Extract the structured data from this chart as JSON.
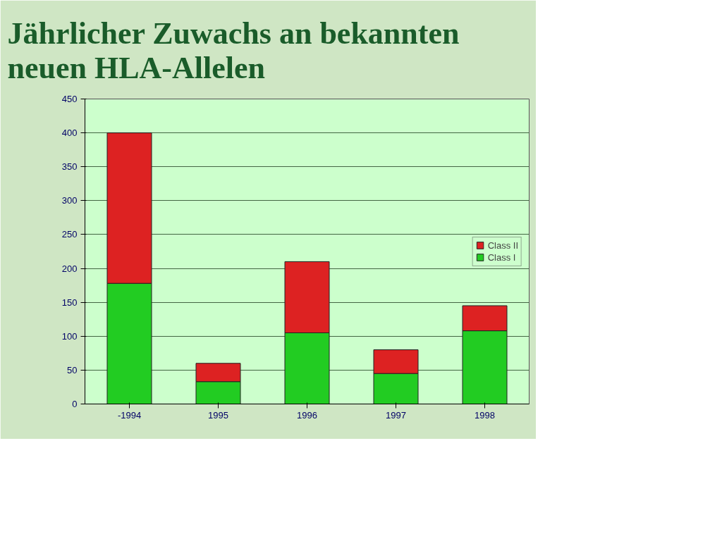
{
  "chart_data": {
    "type": "bar",
    "title": "Jährlicher Zuwachs an bekannten\nneuen HLA-Allelen",
    "stacked": true,
    "categories": [
      "-1994",
      "1995",
      "1996",
      "1997",
      "1998"
    ],
    "series": [
      {
        "name": "Class I",
        "color": "#22cc22",
        "values": [
          178,
          33,
          105,
          45,
          108
        ]
      },
      {
        "name": "Class II",
        "color": "#dd2222",
        "values": [
          222,
          27,
          105,
          35,
          37
        ]
      }
    ],
    "ylim": [
      0,
      450
    ],
    "yticks": [
      0,
      50,
      100,
      150,
      200,
      250,
      300,
      350,
      400,
      450
    ],
    "grid": "y",
    "legend": "right"
  }
}
